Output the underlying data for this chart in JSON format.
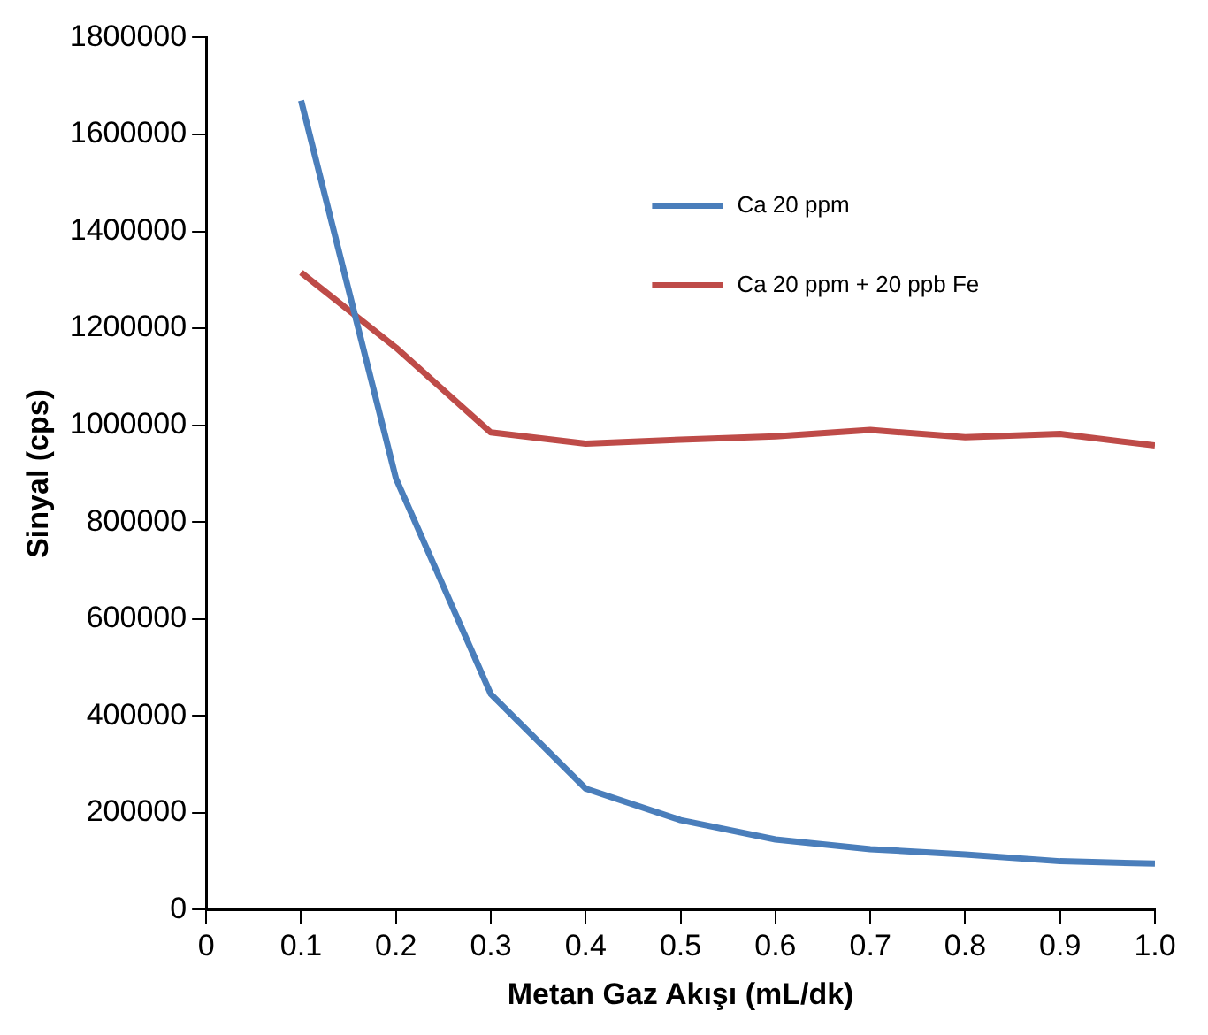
{
  "chart_data": {
    "type": "line",
    "xlabel": "Metan Gaz Akışı (mL/dk)",
    "ylabel": "Sinyal (cps)",
    "x": [
      0.1,
      0.2,
      0.3,
      0.4,
      0.5,
      0.6,
      0.7,
      0.8,
      0.9,
      1.0
    ],
    "series": [
      {
        "name": "Ca 20 ppm",
        "color": "#4a7ebb",
        "values": [
          1670000,
          890000,
          445000,
          250000,
          185000,
          145000,
          125000,
          114000,
          100000,
          95000
        ]
      },
      {
        "name": "Ca 20 ppm + 20 ppb Fe",
        "color": "#be4b48",
        "values": [
          1315000,
          1160000,
          985000,
          962000,
          970000,
          977000,
          990000,
          975000,
          982000,
          958000
        ]
      }
    ],
    "xlim": [
      0,
      1
    ],
    "xticks": [
      0,
      0.1,
      0.2,
      0.3,
      0.4,
      0.5,
      0.6,
      0.7,
      0.8,
      0.9,
      {
        "value": 1,
        "label": "1.0"
      }
    ],
    "ylim": [
      0,
      1800000
    ],
    "yticks": [
      0,
      200000,
      400000,
      600000,
      800000,
      1000000,
      1200000,
      1400000,
      1600000,
      1800000
    ],
    "grid": false,
    "legend": "top right",
    "marker": "none",
    "line_style": "solid"
  }
}
